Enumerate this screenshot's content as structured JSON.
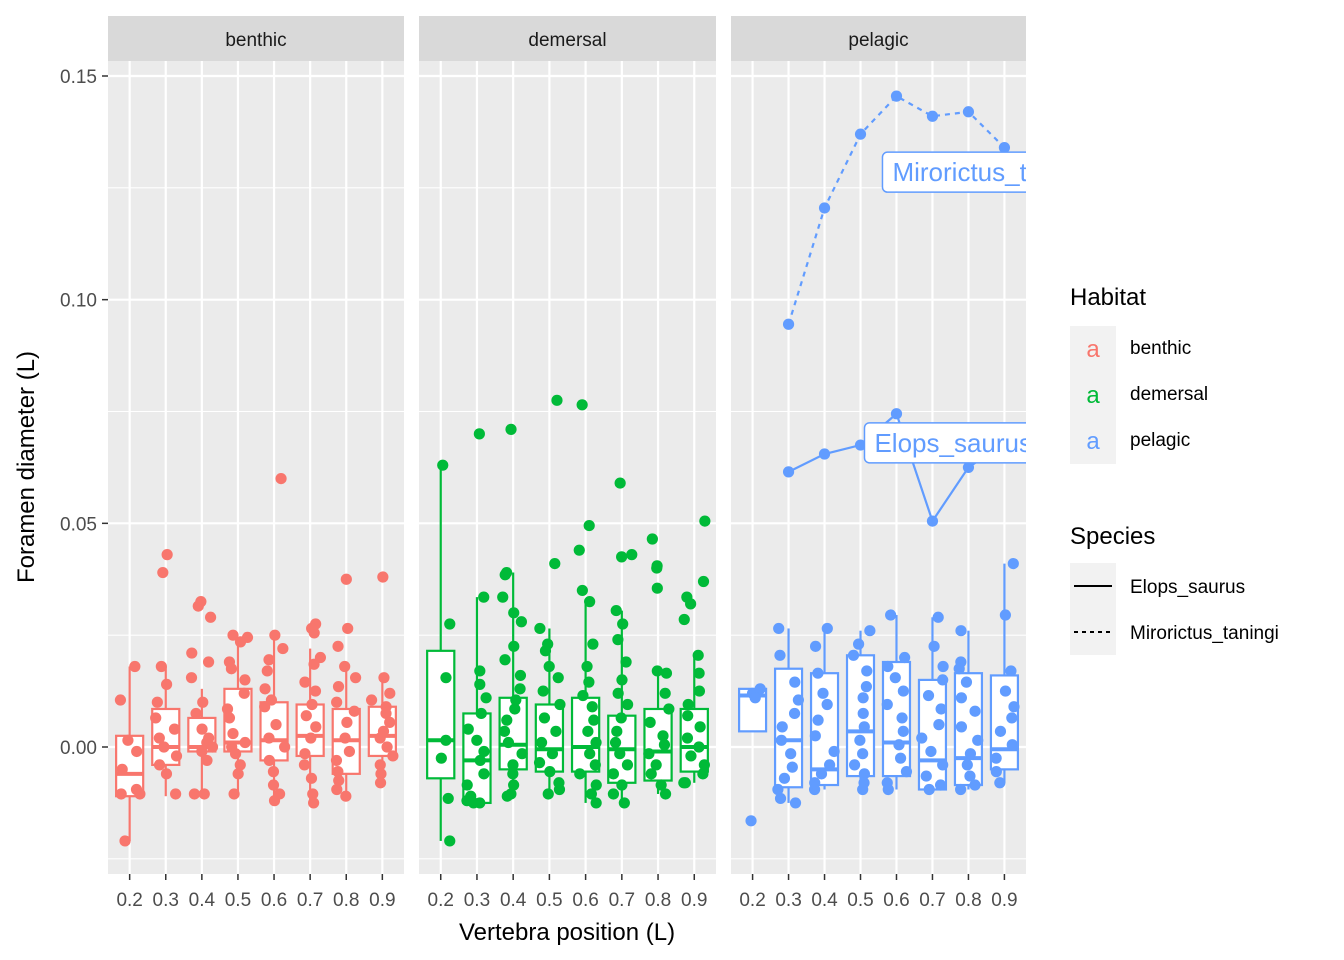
{
  "chart_data": {
    "type": "boxplot",
    "x_label": "Vertebra position (L)",
    "y_label": "Foramen diameter (L)",
    "x_ticks": [
      "0.2",
      "0.3",
      "0.4",
      "0.5",
      "0.6",
      "0.7",
      "0.8",
      "0.9"
    ],
    "y_range": [
      -0.029,
      0.153
    ],
    "y_ticks": [
      {
        "value": 0.0,
        "label": "0.00"
      },
      {
        "value": 0.05,
        "label": "0.05"
      },
      {
        "value": 0.1,
        "label": "0.10"
      },
      {
        "value": 0.15,
        "label": "0.15"
      }
    ],
    "grid": true,
    "legend_placement": "right",
    "legend": {
      "habitat_title": "Habitat",
      "species_title": "Species",
      "habitat_symbol": "a",
      "species": [
        {
          "name": "Elops_saurus",
          "dash": "solid"
        },
        {
          "name": "Mirorictus_taningi",
          "dash": "dotted"
        }
      ]
    },
    "panels": [
      {
        "name": "benthic",
        "color": "#F8766D",
        "boxes": [
          {
            "x": "0.2",
            "q1": -0.011,
            "median": -0.006,
            "q3": 0.0025,
            "lo": -0.021,
            "hi": 0.018
          },
          {
            "x": "0.3",
            "q1": -0.004,
            "median": 0.0,
            "q3": 0.0085,
            "lo": -0.011,
            "hi": 0.018
          },
          {
            "x": "0.4",
            "q1": -0.001,
            "median": 0.0,
            "q3": 0.0065,
            "lo": -0.011,
            "hi": 0.013
          },
          {
            "x": "0.5",
            "q1": -0.001,
            "median": 0.001,
            "q3": 0.013,
            "lo": -0.011,
            "hi": 0.024
          },
          {
            "x": "0.6",
            "q1": -0.003,
            "median": 0.0015,
            "q3": 0.01,
            "lo": -0.012,
            "hi": 0.025
          },
          {
            "x": "0.7",
            "q1": -0.002,
            "median": 0.0025,
            "q3": 0.0095,
            "lo": -0.012,
            "hi": 0.022
          },
          {
            "x": "0.8",
            "q1": -0.006,
            "median": 0.0015,
            "q3": 0.0085,
            "lo": -0.011,
            "hi": 0.018
          },
          {
            "x": "0.9",
            "q1": -0.002,
            "median": 0.0025,
            "q3": 0.009,
            "lo": -0.008,
            "hi": 0.016
          }
        ],
        "points": [
          {
            "x": "0.2",
            "y": [
              0.018,
              0.0105,
              0.0015,
              -0.001,
              -0.005,
              -0.0095,
              -0.0105,
              -0.0105,
              -0.021
            ]
          },
          {
            "x": "0.3",
            "y": [
              0.043,
              0.039,
              0.018,
              0.014,
              0.01,
              0.0065,
              0.004,
              0.002,
              0.0,
              -0.002,
              -0.004,
              -0.006,
              -0.0105
            ]
          },
          {
            "x": "0.4",
            "y": [
              0.0325,
              0.0315,
              0.029,
              0.021,
              0.019,
              0.0155,
              0.01,
              0.0075,
              0.004,
              0.002,
              0.001,
              0.0,
              -0.001,
              -0.003,
              -0.0105,
              -0.0105
            ]
          },
          {
            "x": "0.5",
            "y": [
              0.025,
              0.0245,
              0.0235,
              0.019,
              0.0175,
              0.015,
              0.012,
              0.0085,
              0.0065,
              0.003,
              0.001,
              0.0,
              -0.0015,
              -0.004,
              -0.006,
              -0.0105
            ]
          },
          {
            "x": "0.6",
            "y": [
              0.06,
              0.025,
              0.022,
              0.0195,
              0.017,
              0.013,
              0.0105,
              0.009,
              0.005,
              0.002,
              0.0,
              -0.003,
              -0.0055,
              -0.0085,
              -0.0105,
              -0.012
            ]
          },
          {
            "x": "0.7",
            "y": [
              0.0275,
              0.0265,
              0.0255,
              0.02,
              0.0185,
              0.0145,
              0.0125,
              0.0095,
              0.007,
              0.0045,
              0.002,
              -0.0015,
              -0.004,
              -0.007,
              -0.0105,
              -0.0125
            ]
          },
          {
            "x": "0.8",
            "y": [
              0.0375,
              0.0265,
              0.0225,
              0.018,
              0.0155,
              0.0135,
              0.01,
              0.008,
              0.0055,
              0.002,
              -0.001,
              -0.003,
              -0.0055,
              -0.0075,
              -0.0095,
              -0.011
            ]
          },
          {
            "x": "0.9",
            "y": [
              0.038,
              0.0155,
              0.012,
              0.0105,
              0.009,
              0.0075,
              0.0055,
              0.0035,
              0.002,
              0.0,
              -0.002,
              -0.004,
              -0.006,
              -0.008
            ]
          }
        ],
        "species_lines": []
      },
      {
        "name": "demersal",
        "color": "#00BA38",
        "boxes": [
          {
            "x": "0.2",
            "q1": -0.007,
            "median": 0.0015,
            "q3": 0.0215,
            "lo": -0.021,
            "hi": 0.063
          },
          {
            "x": "0.3",
            "q1": -0.0125,
            "median": -0.003,
            "q3": 0.0075,
            "lo": -0.0125,
            "hi": 0.0335
          },
          {
            "x": "0.4",
            "q1": -0.005,
            "median": 0.0005,
            "q3": 0.011,
            "lo": -0.011,
            "hi": 0.039
          },
          {
            "x": "0.5",
            "q1": -0.0055,
            "median": -0.0005,
            "q3": 0.0095,
            "lo": -0.0105,
            "hi": 0.0265
          },
          {
            "x": "0.6",
            "q1": -0.0055,
            "median": 0.0,
            "q3": 0.011,
            "lo": -0.0125,
            "hi": 0.0325
          },
          {
            "x": "0.7",
            "q1": -0.008,
            "median": -0.0005,
            "q3": 0.007,
            "lo": -0.0125,
            "hi": 0.0305
          },
          {
            "x": "0.8",
            "q1": -0.0075,
            "median": -0.001,
            "q3": 0.0085,
            "lo": -0.0105,
            "hi": 0.017
          },
          {
            "x": "0.9",
            "q1": -0.0055,
            "median": 0.0,
            "q3": 0.0085,
            "lo": -0.008,
            "hi": 0.0205
          }
        ],
        "points": [
          {
            "x": "0.2",
            "y": [
              0.063,
              0.0275,
              0.0155,
              0.0015,
              -0.0025,
              -0.0115,
              -0.021
            ]
          },
          {
            "x": "0.3",
            "y": [
              0.07,
              0.0335,
              0.017,
              0.014,
              0.011,
              0.0075,
              0.004,
              0.0015,
              -0.001,
              -0.003,
              -0.006,
              -0.0085,
              -0.011,
              -0.012,
              -0.0125,
              -0.0125
            ]
          },
          {
            "x": "0.4",
            "y": [
              0.071,
              0.039,
              0.0385,
              0.0335,
              0.03,
              0.028,
              0.0225,
              0.0195,
              0.016,
              0.013,
              0.0105,
              0.0085,
              0.006,
              0.0035,
              0.001,
              -0.0015,
              -0.004,
              -0.006,
              -0.0085,
              -0.011,
              -0.0105
            ]
          },
          {
            "x": "0.5",
            "y": [
              0.0775,
              0.041,
              0.0265,
              0.023,
              0.0215,
              0.018,
              0.0155,
              0.0125,
              0.0095,
              0.0065,
              0.0035,
              0.001,
              -0.0015,
              -0.0035,
              -0.0055,
              -0.008,
              -0.0095,
              -0.0105
            ]
          },
          {
            "x": "0.6",
            "y": [
              0.0765,
              0.0495,
              0.044,
              0.035,
              0.0325,
              0.023,
              0.018,
              0.0145,
              0.0115,
              0.009,
              0.006,
              0.0035,
              0.001,
              -0.0015,
              -0.004,
              -0.006,
              -0.0085,
              -0.0105,
              -0.0125
            ]
          },
          {
            "x": "0.7",
            "y": [
              0.059,
              0.043,
              0.0425,
              0.0305,
              0.0275,
              0.024,
              0.019,
              0.015,
              0.012,
              0.0095,
              0.0065,
              0.0035,
              0.001,
              -0.0015,
              -0.004,
              -0.006,
              -0.0085,
              -0.0105,
              -0.0125
            ]
          },
          {
            "x": "0.8",
            "y": [
              0.0465,
              0.0405,
              0.04,
              0.0355,
              0.017,
              0.0165,
              0.012,
              0.0085,
              0.0055,
              0.0025,
              0.0005,
              -0.0015,
              -0.004,
              -0.006,
              -0.0085,
              -0.0105
            ]
          },
          {
            "x": "0.9",
            "y": [
              0.0505,
              0.037,
              0.0335,
              0.032,
              0.0285,
              0.0205,
              0.0165,
              0.0125,
              0.0095,
              0.007,
              0.0045,
              0.002,
              0.0,
              -0.002,
              -0.004,
              -0.006,
              -0.008,
              -0.008
            ]
          }
        ],
        "species_lines": []
      },
      {
        "name": "pelagic",
        "color": "#619CFF",
        "boxes": [
          {
            "x": "0.2",
            "q1": 0.0035,
            "median": 0.0115,
            "q3": 0.013,
            "lo": 0.0035,
            "hi": 0.013
          },
          {
            "x": "0.3",
            "q1": -0.009,
            "median": 0.0015,
            "q3": 0.0175,
            "lo": -0.0125,
            "hi": 0.0265
          },
          {
            "x": "0.4",
            "q1": -0.0085,
            "median": -0.005,
            "q3": 0.0165,
            "lo": -0.0095,
            "hi": 0.0265
          },
          {
            "x": "0.5",
            "q1": -0.0065,
            "median": 0.0035,
            "q3": 0.0205,
            "lo": -0.0095,
            "hi": 0.026
          },
          {
            "x": "0.6",
            "q1": -0.0065,
            "median": 0.001,
            "q3": 0.019,
            "lo": -0.0095,
            "hi": 0.0295
          },
          {
            "x": "0.7",
            "q1": -0.0095,
            "median": -0.003,
            "q3": 0.015,
            "lo": -0.0095,
            "hi": 0.029
          },
          {
            "x": "0.8",
            "q1": -0.0085,
            "median": -0.0025,
            "q3": 0.0165,
            "lo": -0.0095,
            "hi": 0.026
          },
          {
            "x": "0.9",
            "q1": -0.005,
            "median": -0.0005,
            "q3": 0.016,
            "lo": -0.008,
            "hi": 0.041
          }
        ],
        "points": [
          {
            "x": "0.2",
            "y": [
              0.013,
              0.012,
              0.011,
              -0.0165
            ]
          },
          {
            "x": "0.3",
            "y": [
              0.0265,
              0.0205,
              0.0145,
              0.0105,
              0.0075,
              0.0045,
              0.0015,
              -0.0015,
              -0.0045,
              -0.007,
              -0.0095,
              -0.0115,
              -0.0125
            ]
          },
          {
            "x": "0.4",
            "y": [
              0.0265,
              0.0225,
              0.0165,
              0.012,
              0.0095,
              0.006,
              0.0025,
              -0.001,
              -0.004,
              -0.006,
              -0.008,
              -0.0095
            ]
          },
          {
            "x": "0.5",
            "y": [
              0.026,
              0.023,
              0.0205,
              0.017,
              0.0135,
              0.011,
              0.0075,
              0.0045,
              0.0015,
              -0.0015,
              -0.004,
              -0.006,
              -0.008,
              -0.0095
            ]
          },
          {
            "x": "0.6",
            "y": [
              0.0295,
              0.02,
              0.018,
              0.0155,
              0.0125,
              0.0095,
              0.0065,
              0.0035,
              0.0005,
              -0.0025,
              -0.0055,
              -0.008,
              -0.0095
            ]
          },
          {
            "x": "0.7",
            "y": [
              0.029,
              0.0225,
              0.018,
              0.015,
              0.0115,
              0.0085,
              0.005,
              0.002,
              -0.001,
              -0.004,
              -0.0065,
              -0.0085,
              -0.0095
            ]
          },
          {
            "x": "0.8",
            "y": [
              0.026,
              0.019,
              0.0175,
              0.0145,
              0.011,
              0.008,
              0.0045,
              0.0015,
              -0.0015,
              -0.004,
              -0.0065,
              -0.0085,
              -0.0095
            ]
          },
          {
            "x": "0.9",
            "y": [
              0.041,
              0.0295,
              0.017,
              0.0125,
              0.009,
              0.0065,
              0.0035,
              0.0005,
              -0.0025,
              -0.0055,
              -0.008
            ]
          }
        ],
        "species_lines": [
          {
            "species": "Mirorictus_taningi",
            "dash": "dotted",
            "x": [
              "0.3",
              "0.4",
              "0.5",
              "0.6",
              "0.7",
              "0.8",
              "0.9"
            ],
            "y": [
              0.0945,
              0.1205,
              0.137,
              0.1455,
              0.141,
              0.142,
              0.134
            ],
            "label": "Mirorictus_taningi",
            "label_at": {
              "x": "0.7",
              "y": 0.1285
            }
          },
          {
            "species": "Elops_saurus",
            "dash": "solid",
            "x": [
              "0.3",
              "0.4",
              "0.5",
              "0.6",
              "0.7",
              "0.8",
              "0.9"
            ],
            "y": [
              0.0615,
              0.0655,
              0.0675,
              0.0745,
              0.0505,
              0.0625,
              0.068
            ],
            "label": "Elops_saurus",
            "label_at": {
              "x": "0.65",
              "y": 0.068
            }
          }
        ]
      }
    ]
  }
}
